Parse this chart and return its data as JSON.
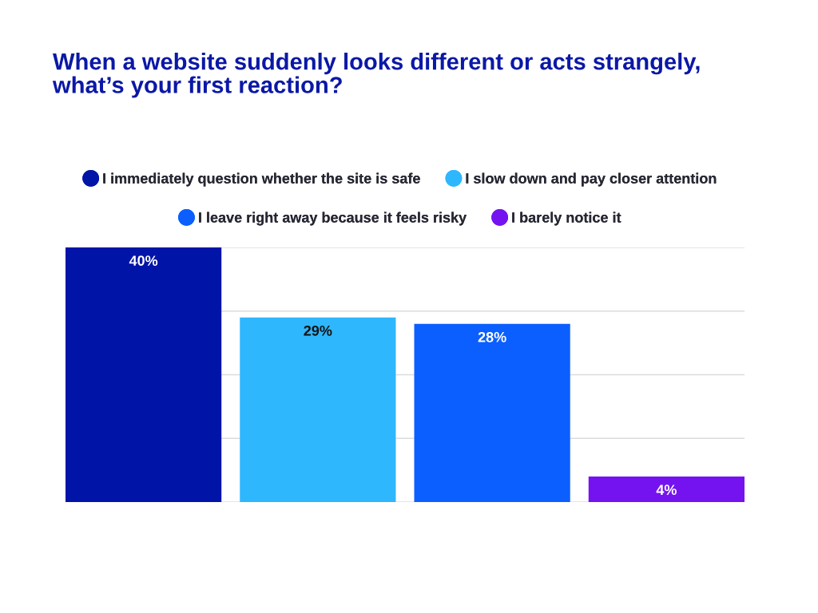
{
  "chart_data": {
    "type": "bar",
    "title": "When a website suddenly looks different or acts strangely,\nwhat’s your first reaction?",
    "categories": [
      null,
      null,
      null,
      null
    ],
    "series": [
      {
        "name": "I immediately question whether the site is safe",
        "color": "#0014a8",
        "values": [
          40,
          null,
          null,
          null
        ],
        "value_labels": [
          "40%",
          null,
          null,
          null
        ]
      },
      {
        "name": "I slow down and pay closer attention",
        "color": "#2fb7fe",
        "values": [
          null,
          29,
          null,
          null
        ],
        "value_labels": [
          null,
          "29%",
          null,
          null
        ]
      },
      {
        "name": "I leave right away because it feels risky",
        "color": "#0b5fff",
        "values": [
          null,
          null,
          28,
          null
        ],
        "value_labels": [
          null,
          null,
          "28%",
          null
        ]
      },
      {
        "name": "I barely notice it",
        "color": "#7513f0",
        "values": [
          null,
          null,
          null,
          4
        ],
        "value_labels": [
          null,
          null,
          null,
          "4%"
        ]
      }
    ],
    "stacked": true,
    "ylim": [
      0,
      40
    ],
    "yticks": [
      {
        "value": 0,
        "label": null
      },
      {
        "value": 10,
        "label": null
      },
      {
        "value": 20,
        "label": null
      },
      {
        "value": 30,
        "label": null
      },
      {
        "value": 40,
        "label": null
      }
    ],
    "grid": "y",
    "legend": "top"
  }
}
